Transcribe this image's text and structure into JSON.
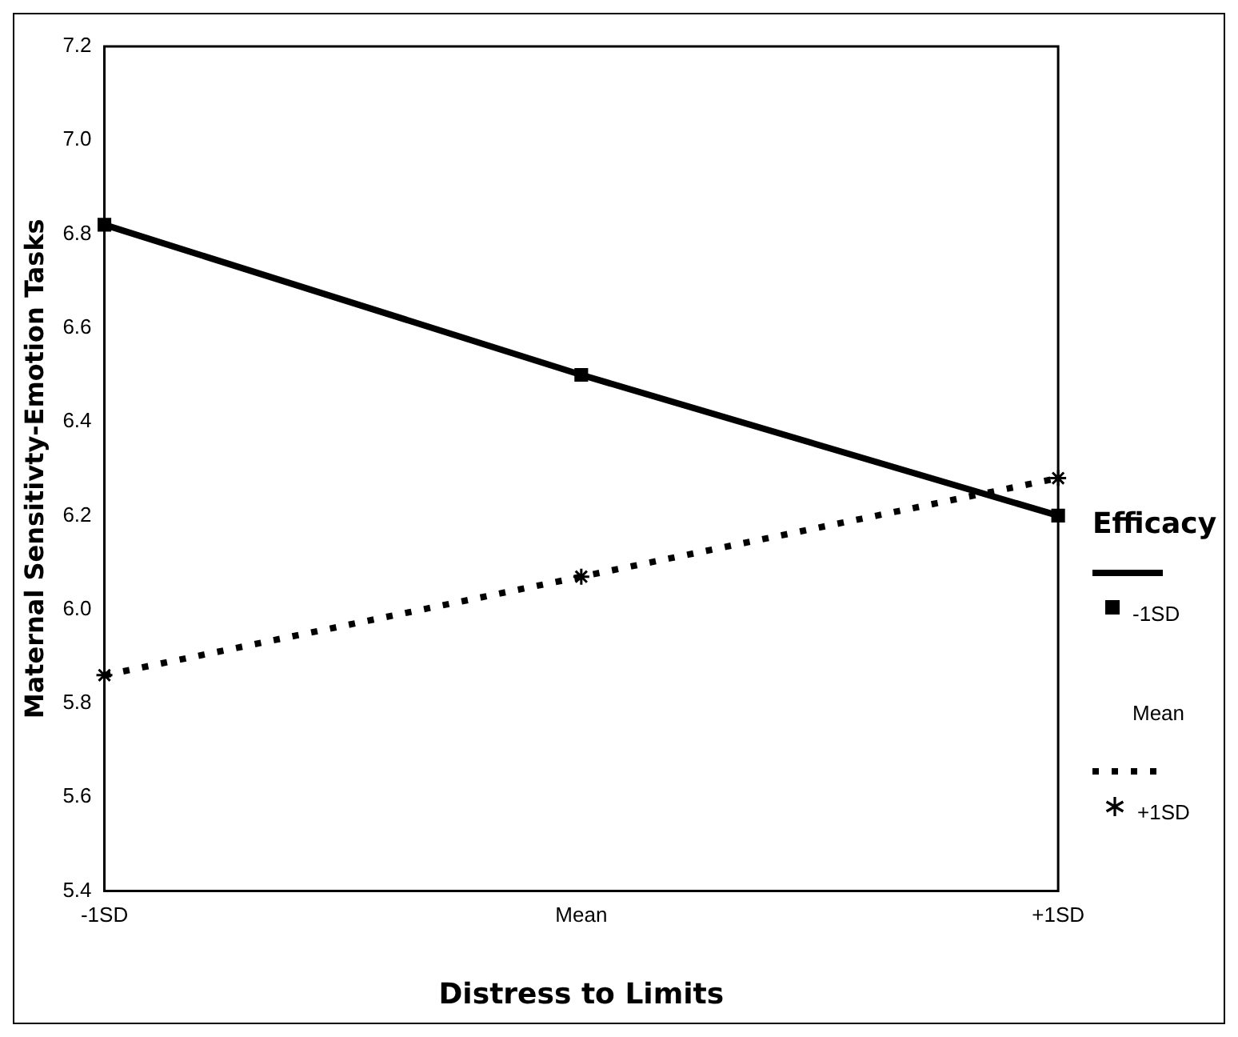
{
  "chart_data": {
    "type": "line",
    "xlabel": "Distress to Limits",
    "ylabel": "Maternal Sensitivty-Emotion Tasks",
    "legend_title": "Efficacy",
    "legend": "right",
    "categories": [
      "-1SD",
      "Mean",
      "+1SD"
    ],
    "series": [
      {
        "name": "-1SD",
        "color": "#000000",
        "values": [
          6.82,
          6.5,
          6.2
        ],
        "marker": "square",
        "line_style": "solid"
      },
      {
        "name": "Mean",
        "values": [
          null,
          null,
          null
        ],
        "marker": "none",
        "line_style": "none"
      },
      {
        "name": "+1SD",
        "color": "#000000",
        "values": [
          5.86,
          6.07,
          6.28
        ],
        "marker": "cross",
        "line_style": "dotted"
      }
    ],
    "ylim": [
      5.4,
      7.2
    ],
    "yticks": [
      5.4,
      5.6,
      5.8,
      {
        "value": 6,
        "label": "6.0"
      },
      6.2,
      6.4,
      6.6,
      6.8,
      {
        "value": 7,
        "label": "7.0"
      },
      7.2
    ],
    "grid": false
  }
}
